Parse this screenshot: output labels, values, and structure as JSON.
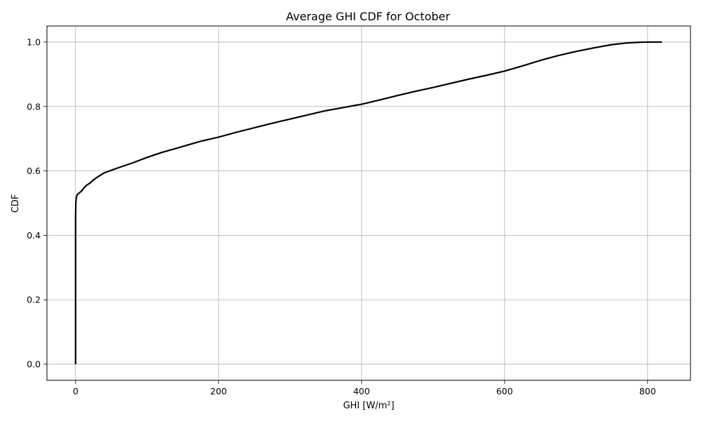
{
  "chart_data": {
    "type": "line",
    "title": "Average GHI CDF for October",
    "xlabel": "GHI [W/m²]",
    "ylabel": "CDF",
    "xlim": [
      -40,
      860
    ],
    "ylim": [
      -0.05,
      1.05
    ],
    "xticks": [
      0,
      200,
      400,
      600,
      800
    ],
    "yticks": [
      0.0,
      0.2,
      0.4,
      0.6,
      0.8,
      1.0
    ],
    "xtick_labels": [
      "0",
      "200",
      "400",
      "600",
      "800"
    ],
    "ytick_labels": [
      "0.0",
      "0.2",
      "0.4",
      "0.6",
      "0.8",
      "1.0"
    ],
    "grid": true,
    "line_color": "#000000",
    "series": [
      {
        "x": [
          0,
          0,
          0.3,
          1,
          2,
          4,
          6,
          8,
          10,
          12,
          15,
          20,
          25,
          30,
          40,
          50,
          60,
          80,
          100,
          120,
          150,
          175,
          200,
          225,
          250,
          275,
          300,
          325,
          350,
          375,
          400,
          425,
          450,
          475,
          500,
          525,
          550,
          575,
          600,
          625,
          650,
          675,
          700,
          725,
          750,
          770,
          785,
          800,
          820
        ],
        "y": [
          0.0,
          0.45,
          0.5,
          0.515,
          0.525,
          0.53,
          0.533,
          0.537,
          0.542,
          0.548,
          0.555,
          0.562,
          0.572,
          0.58,
          0.594,
          0.602,
          0.61,
          0.625,
          0.642,
          0.657,
          0.676,
          0.692,
          0.705,
          0.72,
          0.734,
          0.748,
          0.761,
          0.774,
          0.787,
          0.797,
          0.807,
          0.82,
          0.834,
          0.847,
          0.859,
          0.872,
          0.885,
          0.897,
          0.91,
          0.926,
          0.943,
          0.958,
          0.971,
          0.982,
          0.992,
          0.997,
          0.999,
          1.0,
          1.0
        ]
      }
    ]
  }
}
